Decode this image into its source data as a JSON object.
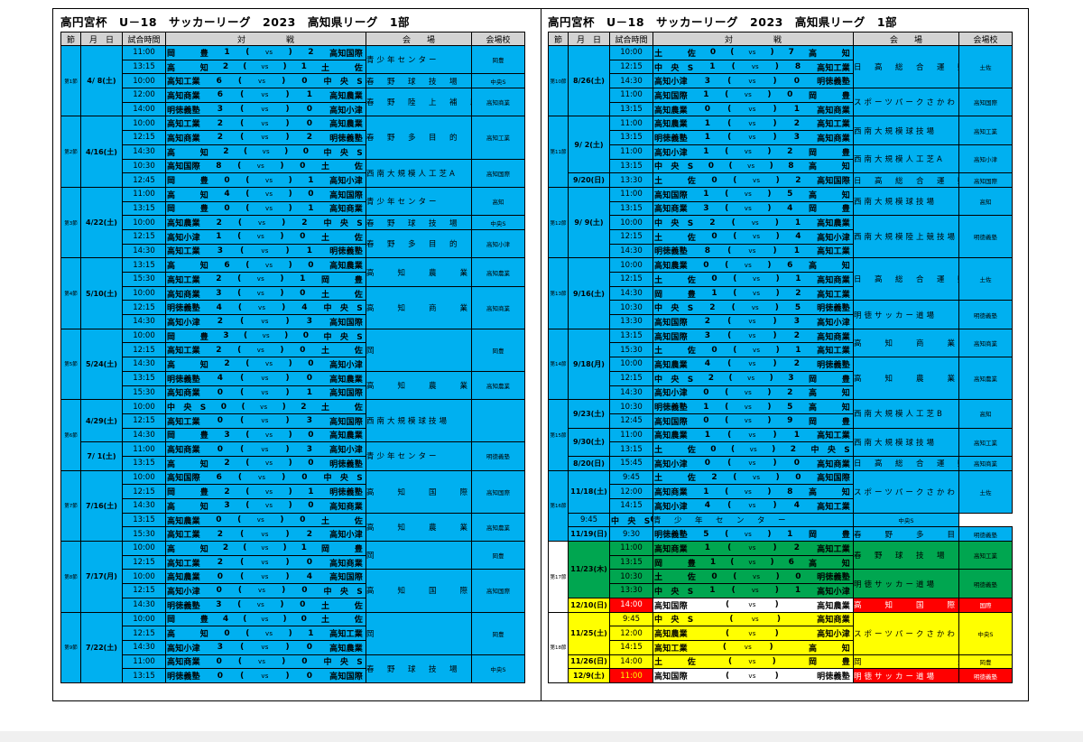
{
  "left": {
    "title": "高円宮杯　U－18　サッカーリーグ　2023　高知県リーグ　1部",
    "headers": [
      "節",
      "月　日",
      "試合時間",
      "対　　　　　戦",
      "会　　場",
      "会場校"
    ],
    "rows": [
      {
        "rnd": "第1節",
        "rs": 5,
        "dt": "4/ 8(土)",
        "ds": 5,
        "tm": "11:00",
        "h": "岡　　　豊",
        "hs": "1",
        "as": "2",
        "a": "高知国際",
        "vn": "青少年センター",
        "vs": 2,
        "sc": "岡豊",
        "ss": 2
      },
      {
        "tm": "13:15",
        "h": "高　　　知",
        "hs": "2",
        "as": "1",
        "a": "土　　　佐"
      },
      {
        "tm": "10:00",
        "h": "高知工業",
        "hs": "6",
        "as": "0",
        "a": "中　央　S",
        "vn": "春　野　球　技　場",
        "vs": 1,
        "sc": "中央S",
        "ss": 1
      },
      {
        "tm": "12:00",
        "h": "高知商業",
        "hs": "6",
        "as": "1",
        "a": "高知農業",
        "vn": "春　野　陸　上　補　助",
        "vs": 2,
        "sc": "高知商業",
        "ss": 2
      },
      {
        "tm": "14:00",
        "h": "明徳義塾",
        "hs": "3",
        "as": "0",
        "a": "高知小津"
      },
      {
        "rnd": "第2節",
        "rs": 5,
        "dt": "4/16(土)",
        "ds": 5,
        "tm": "10:00",
        "h": "高知工業",
        "hs": "2",
        "as": "0",
        "a": "高知農業",
        "vn": "春　野　多　目　的",
        "vs": 3,
        "sc": "高知工業",
        "ss": 3
      },
      {
        "tm": "12:15",
        "h": "高知商業",
        "hs": "2",
        "as": "2",
        "a": "明徳義塾"
      },
      {
        "tm": "14:30",
        "h": "高　　　知",
        "hs": "2",
        "as": "0",
        "a": "中　央　S"
      },
      {
        "tm": "10:30",
        "h": "高知国際",
        "hs": "8",
        "as": "0",
        "a": "土　　　佐",
        "vn": "西南大規模人工芝A",
        "vs": 2,
        "sc": "高知国際",
        "ss": 2
      },
      {
        "tm": "12:45",
        "h": "岡　　　豊",
        "hs": "0",
        "as": "1",
        "a": "高知小津"
      },
      {
        "rnd": "第3節",
        "rs": 5,
        "dt": "4/22(土)",
        "ds": 5,
        "tm": "11:00",
        "h": "高　　　知",
        "hs": "4",
        "as": "0",
        "a": "高知国際",
        "vn": "青少年センター",
        "vs": 2,
        "sc": "高知",
        "ss": 2
      },
      {
        "tm": "13:15",
        "h": "岡　　　豊",
        "hs": "0",
        "as": "1",
        "a": "高知商業"
      },
      {
        "tm": "10:00",
        "h": "高知農業",
        "hs": "2",
        "as": "2",
        "a": "中　央　S",
        "vn": "春　野　球　技　場",
        "vs": 1,
        "sc": "中央S",
        "ss": 1
      },
      {
        "tm": "12:15",
        "h": "高知小津",
        "hs": "1",
        "as": "0",
        "a": "土　　　佐",
        "vn": "春　野　多　目　的",
        "vs": 2,
        "sc": "高知小津",
        "ss": 2
      },
      {
        "tm": "14:30",
        "h": "高知工業",
        "hs": "3",
        "as": "1",
        "a": "明徳義塾"
      },
      {
        "rnd": "第4節",
        "rs": 5,
        "dt": "5/10(土)",
        "ds": 5,
        "tm": "13:15",
        "h": "高　　　知",
        "hs": "6",
        "as": "0",
        "a": "高知農業",
        "vn": "高　　知　　農　　業",
        "vs": 2,
        "sc": "高知農業",
        "ss": 2
      },
      {
        "tm": "15:30",
        "h": "高知工業",
        "hs": "2",
        "as": "1",
        "a": "岡　　　豊"
      },
      {
        "tm": "10:00",
        "h": "高知商業",
        "hs": "3",
        "as": "0",
        "a": "土　　　佐",
        "vn": "高　　知　　商　　業",
        "vs": 3,
        "sc": "高知商業",
        "ss": 3
      },
      {
        "tm": "12:15",
        "h": "明徳義塾",
        "hs": "4",
        "as": "4",
        "a": "中　央　S"
      },
      {
        "tm": "14:30",
        "h": "高知小津",
        "hs": "2",
        "as": "3",
        "a": "高知国際"
      },
      {
        "rnd": "第5節",
        "rs": 5,
        "dt": "5/24(土)",
        "ds": 5,
        "tm": "10:00",
        "h": "岡　　　豊",
        "hs": "3",
        "as": "0",
        "a": "中　央　S",
        "vn": "岡　　　　　　　　　　豊",
        "vs": 3,
        "sc": "岡豊",
        "ss": 3
      },
      {
        "tm": "12:15",
        "h": "高知工業",
        "hs": "2",
        "as": "0",
        "a": "土　　　佐"
      },
      {
        "tm": "14:30",
        "h": "高　　　知",
        "hs": "2",
        "as": "0",
        "a": "高知小津"
      },
      {
        "tm": "13:15",
        "h": "明徳義塾",
        "hs": "4",
        "as": "0",
        "a": "高知農業",
        "vn": "高　　知　　農　　業",
        "vs": 2,
        "sc": "高知農業",
        "ss": 2
      },
      {
        "tm": "15:30",
        "h": "高知商業",
        "hs": "0",
        "as": "1",
        "a": "高知国際"
      },
      {
        "rnd": "第6節",
        "rs": 5,
        "dt": "4/29(土)",
        "ds": 3,
        "tm": "10:00",
        "h": "中　央　S",
        "hs": "0",
        "as": "2",
        "a": "土　　　佐",
        "vn": "西南大規模球技場",
        "vs": 3,
        "sc": "",
        "ss": 3
      },
      {
        "tm": "12:15",
        "h": "高知工業",
        "hs": "0",
        "as": "3",
        "a": "高知国際"
      },
      {
        "tm": "14:30",
        "h": "岡　　　豊",
        "hs": "3",
        "as": "0",
        "a": "高知農業"
      },
      {
        "dt": "7/ 1(土)",
        "ds": 2,
        "tm": "11:00",
        "h": "高知商業",
        "hs": "0",
        "as": "3",
        "a": "高知小津",
        "vn": "青少年センター",
        "vs": 2,
        "sc": "明徳義塾",
        "ss": 2
      },
      {
        "tm": "13:15",
        "h": "高　　　知",
        "hs": "2",
        "as": "0",
        "a": "明徳義塾"
      },
      {
        "rnd": "第7節",
        "rs": 5,
        "dt": "7/16(土)",
        "ds": 5,
        "tm": "10:00",
        "h": "高知国際",
        "hs": "6",
        "as": "0",
        "a": "中　央　S",
        "vn": "高　　知　　国　　際",
        "vs": 3,
        "sc": "高知国際",
        "ss": 3
      },
      {
        "tm": "12:15",
        "h": "岡　　　豊",
        "hs": "2",
        "as": "1",
        "a": "明徳義塾"
      },
      {
        "tm": "14:30",
        "h": "高　　　知",
        "hs": "3",
        "as": "0",
        "a": "高知商業"
      },
      {
        "tm": "13:15",
        "h": "高知農業",
        "hs": "0",
        "as": "0",
        "a": "土　　　佐",
        "vn": "高　　知　　農　　業",
        "vs": 2,
        "sc": "高知農業",
        "ss": 2
      },
      {
        "tm": "15:30",
        "h": "高知工業",
        "hs": "2",
        "as": "2",
        "a": "高知小津"
      },
      {
        "rnd": "第8節",
        "rs": 5,
        "dt": "7/17(月)",
        "ds": 5,
        "tm": "10:00",
        "h": "高　　　知",
        "hs": "2",
        "as": "1",
        "a": "岡　　　豊",
        "vn": "岡　　　　　　　　　　豊",
        "vs": 2,
        "sc": "岡豊",
        "ss": 2
      },
      {
        "tm": "12:15",
        "h": "高知工業",
        "hs": "2",
        "as": "0",
        "a": "高知商業"
      },
      {
        "tm": "10:00",
        "h": "高知農業",
        "hs": "0",
        "as": "4",
        "a": "高知国際",
        "vn": "高　　知　　国　　際",
        "vs": 3,
        "sc": "高知国際",
        "ss": 3
      },
      {
        "tm": "12:15",
        "h": "高知小津",
        "hs": "0",
        "as": "0",
        "a": "中　央　S"
      },
      {
        "tm": "14:30",
        "h": "明徳義塾",
        "hs": "3",
        "as": "0",
        "a": "土　　　佐"
      },
      {
        "rnd": "第9節",
        "rs": 5,
        "dt": "7/22(土)",
        "ds": 5,
        "tm": "10:00",
        "h": "岡　　　豊",
        "hs": "4",
        "as": "0",
        "a": "土　　　佐",
        "vn": "岡　　　　　　　　　　豊",
        "vs": 3,
        "sc": "岡豊",
        "ss": 3
      },
      {
        "tm": "12:15",
        "h": "高　　　知",
        "hs": "0",
        "as": "1",
        "a": "高知工業"
      },
      {
        "tm": "14:30",
        "h": "高知小津",
        "hs": "3",
        "as": "0",
        "a": "高知農業"
      },
      {
        "tm": "11:00",
        "h": "高知商業",
        "hs": "0",
        "as": "0",
        "a": "中　央　S",
        "vn": "春　野　球　技　場",
        "vs": 2,
        "sc": "中央S",
        "ss": 2
      },
      {
        "tm": "13:15",
        "h": "明徳義塾",
        "hs": "0",
        "as": "0",
        "a": "高知国際"
      }
    ]
  },
  "right": {
    "title": "高円宮杯　U－18　サッカーリーグ　2023　高知県リーグ　1部",
    "headers": [
      "節",
      "月　日",
      "試合時間",
      "対　　　　　戦",
      "会　　場",
      "会場校"
    ],
    "rows": [
      {
        "rnd": "第10節",
        "rs": 5,
        "dt": "8/26(土)",
        "ds": 5,
        "tm": "10:00",
        "h": "土　　　佐",
        "hs": "0",
        "as": "7",
        "a": "高　　　知",
        "vn": "日　高　総　合　運　動　公　園",
        "vs": 3,
        "sc": "土佐",
        "ss": 3
      },
      {
        "tm": "12:15",
        "h": "中　央　S",
        "hs": "1",
        "as": "8",
        "a": "高知工業"
      },
      {
        "tm": "14:30",
        "h": "高知小津",
        "hs": "3",
        "as": "0",
        "a": "明徳義塾"
      },
      {
        "tm": "11:00",
        "h": "高知国際",
        "hs": "1",
        "as": "0",
        "a": "岡　　　豊",
        "vn": "スポーツパークさかわ",
        "vs": 2,
        "sc": "高知国際",
        "ss": 2
      },
      {
        "tm": "13:15",
        "h": "高知農業",
        "hs": "0",
        "as": "1",
        "a": "高知商業"
      },
      {
        "rnd": "第11節",
        "rs": 5,
        "dt": "9/ 2(土)",
        "ds": 4,
        "tm": "11:00",
        "h": "高知農業",
        "hs": "1",
        "as": "2",
        "a": "高知工業",
        "vn": "西南大規模球技場",
        "vs": 2,
        "sc": "高知工業",
        "ss": 2
      },
      {
        "tm": "13:15",
        "h": "明徳義塾",
        "hs": "1",
        "as": "3",
        "a": "高知商業"
      },
      {
        "tm": "11:00",
        "h": "高知小津",
        "hs": "1",
        "as": "2",
        "a": "岡　　　豊",
        "vn": "西南大規模人工芝A",
        "vs": 2,
        "sc": "高知小津",
        "ss": 2
      },
      {
        "tm": "13:15",
        "h": "中　央　S",
        "hs": "0",
        "as": "8",
        "a": "高　　　知"
      },
      {
        "dt": "9/20(日)",
        "ds": 1,
        "tm": "13:30",
        "h": "土　　　佐",
        "hs": "0",
        "as": "2",
        "a": "高知国際",
        "vn": "日　高　総　合　運　動　公　園",
        "vs": 1,
        "sc": "高知国際",
        "ss": 1
      },
      {
        "rnd": "第12節",
        "rs": 5,
        "dt": "9/ 9(土)",
        "ds": 5,
        "tm": "11:00",
        "h": "高知国際",
        "hs": "1",
        "as": "5",
        "a": "高　　　知",
        "vn": "西南大規模球技場",
        "vs": 2,
        "sc": "高知",
        "ss": 2
      },
      {
        "tm": "13:15",
        "h": "高知商業",
        "hs": "3",
        "as": "4",
        "a": "岡　　　豊"
      },
      {
        "tm": "10:00",
        "h": "中　央　S",
        "hs": "2",
        "as": "1",
        "a": "高知農業",
        "vn": "西南大規模陸上競技場",
        "vs": 3,
        "sc": "明徳義塾",
        "ss": 3
      },
      {
        "tm": "12:15",
        "h": "土　　　佐",
        "hs": "0",
        "as": "4",
        "a": "高知小津"
      },
      {
        "tm": "14:30",
        "h": "明徳義塾",
        "hs": "8",
        "as": "1",
        "a": "高知工業"
      },
      {
        "rnd": "第13節",
        "rs": 5,
        "dt": "9/16(土)",
        "ds": 5,
        "tm": "10:00",
        "h": "高知農業",
        "hs": "0",
        "as": "6",
        "a": "高　　　知",
        "vn": "日　高　総　合　運　動　公　園",
        "vs": 3,
        "sc": "土佐",
        "ss": 3
      },
      {
        "tm": "12:15",
        "h": "土　　　佐",
        "hs": "0",
        "as": "1",
        "a": "高知商業"
      },
      {
        "tm": "14:30",
        "h": "岡　　　豊",
        "hs": "1",
        "as": "2",
        "a": "高知工業"
      },
      {
        "tm": "10:30",
        "h": "中　央　S",
        "hs": "2",
        "as": "5",
        "a": "明徳義塾",
        "vn": "明徳サッカー道場",
        "vs": 2,
        "sc": "明徳義塾",
        "ss": 2
      },
      {
        "tm": "13:30",
        "h": "高知国際",
        "hs": "2",
        "as": "3",
        "a": "高知小津"
      },
      {
        "rnd": "第14節",
        "rs": 5,
        "dt": "9/18(月)",
        "ds": 5,
        "tm": "13:15",
        "h": "高知国際",
        "hs": "3",
        "as": "2",
        "a": "高知商業",
        "vn": "高　　知　　商　　業",
        "vs": 2,
        "sc": "高知商業",
        "ss": 2
      },
      {
        "tm": "15:30",
        "h": "土　　　佐",
        "hs": "0",
        "as": "1",
        "a": "高知工業"
      },
      {
        "tm": "10:00",
        "h": "高知農業",
        "hs": "4",
        "as": "2",
        "a": "明徳義塾",
        "vn": "高　　知　　農　　業",
        "vs": 3,
        "sc": "高知農業",
        "ss": 3
      },
      {
        "tm": "12:15",
        "h": "中　央　S",
        "hs": "2",
        "as": "3",
        "a": "岡　　　豊"
      },
      {
        "tm": "14:30",
        "h": "高知小津",
        "hs": "0",
        "as": "2",
        "a": "高　　　知"
      },
      {
        "rnd": "第15節",
        "rs": 5,
        "dt": "9/23(土)",
        "ds": 2,
        "tm": "10:30",
        "h": "明徳義塾",
        "hs": "1",
        "as": "5",
        "a": "高　　　知",
        "vn": "西南大規模人工芝B",
        "vs": 2,
        "sc": "高知",
        "ss": 2
      },
      {
        "tm": "12:45",
        "h": "高知国際",
        "hs": "0",
        "as": "9",
        "a": "岡　　　豊"
      },
      {
        "dt": "9/30(土)",
        "ds": 2,
        "tm": "11:00",
        "h": "高知農業",
        "hs": "1",
        "as": "1",
        "a": "高知工業",
        "vn": "西南大規模球技場",
        "vs": 2,
        "sc": "高知工業",
        "ss": 2
      },
      {
        "tm": "13:15",
        "h": "土　　　佐",
        "hs": "0",
        "as": "2",
        "a": "中　央　S"
      },
      {
        "dt": "8/20(日)",
        "ds": 1,
        "tm": "15:45",
        "h": "高知小津",
        "hs": "0",
        "as": "0",
        "a": "高知商業",
        "vn": "日　高　総　合　運　動　公　園",
        "vs": 1,
        "sc": "高知商業",
        "ss": 1
      },
      {
        "rnd": "第16節",
        "rs": 5,
        "dt": "11/18(土)",
        "ds": 3,
        "tm": "9:45",
        "h": "土　　　佐",
        "hs": "2",
        "as": "0",
        "a": "高知国際",
        "vn": "スポーツパークさかわ",
        "vs": 3,
        "sc": "土佐",
        "ss": 3
      },
      {
        "tm": "12:00",
        "h": "高知商業",
        "hs": "1",
        "as": "8",
        "a": "高　　　知"
      },
      {
        "tm": "14:15",
        "h": "高知小津",
        "hs": "4",
        "as": "4",
        "a": "高知工業"
      },
      {
        "tm": "9:45",
        "h": "中　央　S",
        "hs": "0",
        "as": "1",
        "a": "高知国際",
        "vn": "青　少　年　セ　ン　タ　ー",
        "vs": 1,
        "sc": "中央S",
        "ss": 1
      },
      {
        "dt": "11/19(日)",
        "ds": 1,
        "tm": "9:30",
        "h": "明徳義塾",
        "hs": "5",
        "as": "1",
        "a": "岡　　　豊",
        "vn": "春　　野　　多　　目　　的",
        "vs": 1,
        "sc": "明徳義塾",
        "ss": 1
      },
      {
        "rnd": "第17節",
        "rs": 5,
        "c": "g",
        "dt": "11/23(木)",
        "ds": 4,
        "tm": "11:00",
        "h": "高知商業",
        "hs": "1",
        "as": "2",
        "a": "高知工業",
        "vn": "春　野　球　技　場",
        "vs": 2,
        "sc": "高知工業",
        "ss": 2
      },
      {
        "c": "g",
        "tm": "13:15",
        "h": "岡　　　豊",
        "hs": "1",
        "as": "6",
        "a": "高　　　知"
      },
      {
        "c": "g",
        "tm": "10:30",
        "h": "土　　　佐",
        "hs": "0",
        "as": "0",
        "a": "明徳義塾",
        "vn": "明徳サッカー道場",
        "vs": 2,
        "sc": "明徳義塾",
        "ss": 2
      },
      {
        "c": "g",
        "tm": "13:30",
        "h": "中　央　S",
        "hs": "1",
        "as": "1",
        "a": "高知小津"
      },
      {
        "c": "r",
        "dt": "12/10(日)",
        "ds": 1,
        "tm": "14:00",
        "h": "高知国際",
        "hs": "",
        "as": "",
        "a": "高知農業",
        "vn": "高　　知　　国　　際",
        "vs": 1,
        "sc": "国際",
        "ss": 1
      },
      {
        "rnd": "第18節",
        "rs": 5,
        "c": "y",
        "dt": "11/25(土)",
        "ds": 3,
        "tm": "9:45",
        "h": "中　央　S",
        "hs": "",
        "as": "",
        "a": "高知商業",
        "vn": "スポーツパークさかわ",
        "vs": 3,
        "sc": "中央S",
        "ss": 3
      },
      {
        "c": "y",
        "tm": "12:00",
        "h": "高知農業",
        "hs": "",
        "as": "",
        "a": "高知小津"
      },
      {
        "c": "y",
        "tm": "14:15",
        "h": "高知工業",
        "hs": "",
        "as": "",
        "a": "高　　　知"
      },
      {
        "c": "y",
        "dt": "11/26(日)",
        "ds": 1,
        "tm": "14:00",
        "h": "土　　　佐",
        "hs": "",
        "as": "",
        "a": "岡　　　豊",
        "vn": "岡　　　　　　　　　豊",
        "vs": 1,
        "sc": "岡豊",
        "ss": 1
      },
      {
        "c": "r2",
        "dt": "12/9(土)",
        "ds": 1,
        "tm": "11:00",
        "h": "高知国際",
        "hs": "",
        "as": "",
        "a": "明徳義塾",
        "vn": "明徳サッカー道場",
        "vs": 1,
        "sc": "明徳義塾",
        "ss": 1
      }
    ]
  },
  "vs_label": "vs",
  "colors": {
    "blue": "#00b0f0",
    "green": "#00a650",
    "yellow": "#ffff00",
    "red": "#ff0000",
    "header": "#d3d3d3"
  }
}
